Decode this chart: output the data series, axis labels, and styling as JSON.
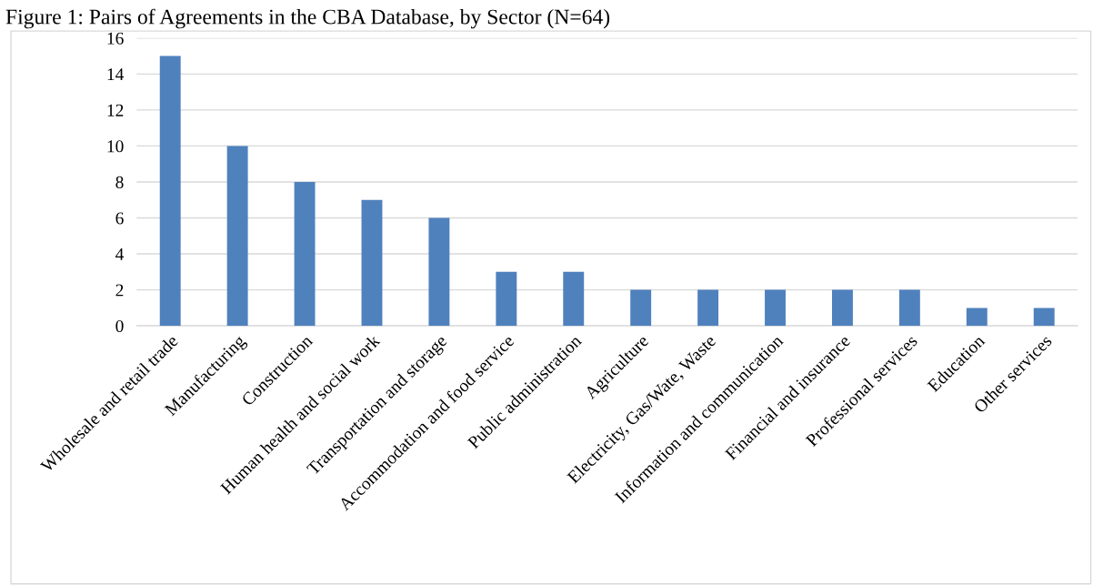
{
  "chart_data": {
    "type": "bar",
    "title": "Figure 1: Pairs of Agreements in the CBA Database, by Sector (N=64)",
    "categories": [
      "Wholesale and retail trade",
      "Manufacturing",
      "Construction",
      "Human health and social work",
      "Transportation and storage",
      "Accommodation and food service",
      "Public administration",
      "Agriculture",
      "Electricity, Gas/Wate, Waste",
      "Information and communication",
      "Financial and insurance",
      "Professional services",
      "Education",
      "Other services"
    ],
    "values": [
      15,
      10,
      8,
      7,
      6,
      3,
      3,
      2,
      2,
      2,
      2,
      2,
      1,
      1
    ],
    "color": "#4f81bd",
    "ylim": [
      0,
      16
    ],
    "yticks": [
      0,
      2,
      4,
      6,
      8,
      10,
      12,
      14,
      16
    ],
    "grid": "y",
    "legend": false
  }
}
